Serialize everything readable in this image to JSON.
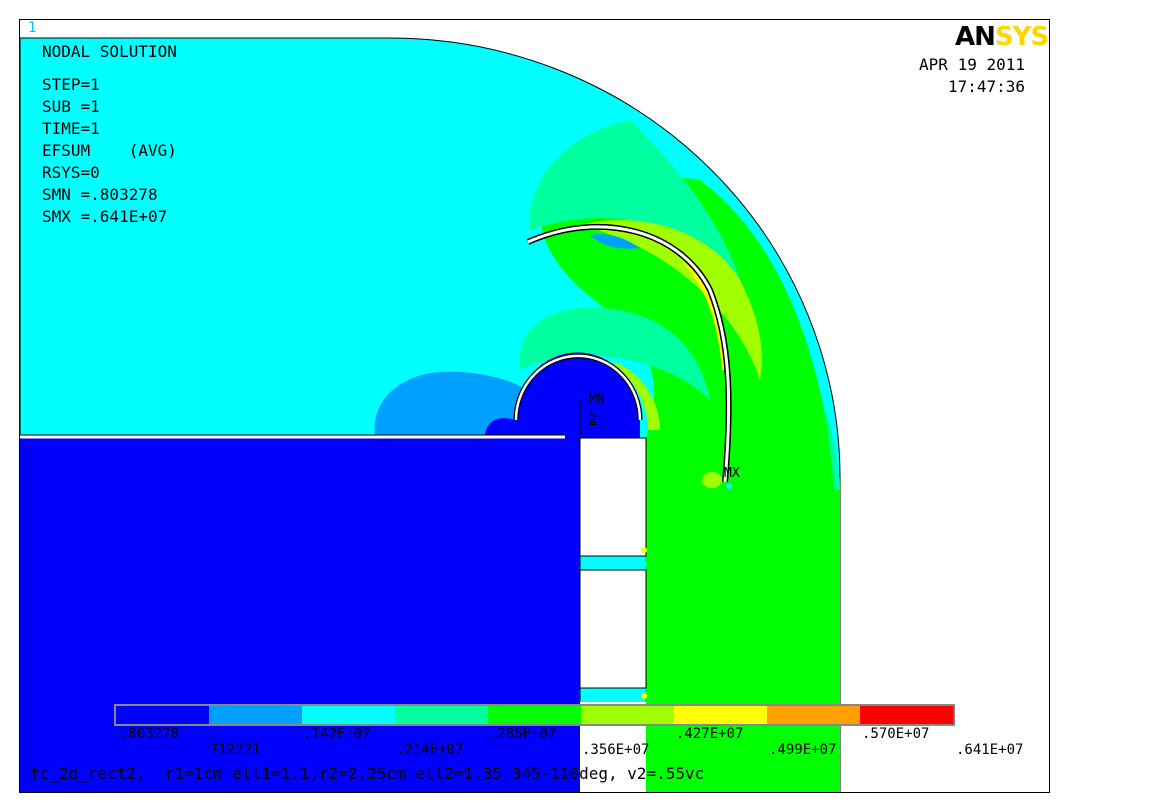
{
  "window_number": "1",
  "logo": {
    "part1": "AN",
    "part2": "SYS"
  },
  "date": "APR 19 2011",
  "time": "17:47:36",
  "info": {
    "title": "NODAL SOLUTION",
    "lines": [
      "STEP=1",
      "SUB =1",
      "TIME=1",
      "EFSUM    (AVG)",
      "RSYS=0",
      "SMN =.803278",
      "SMX =.641E+07"
    ]
  },
  "markers": {
    "min": "MN",
    "min_node": "2",
    "max": "MX"
  },
  "legend": {
    "colors": [
      "#0000ff",
      "#00a0ff",
      "#00ffff",
      "#00ff9f",
      "#00ff00",
      "#a0ff00",
      "#ffff00",
      "#ffa000",
      "#ff0000"
    ],
    "labels_top": [
      ".803278",
      ".142E+07",
      ".285E+07",
      ".427E+07",
      ".570E+07"
    ],
    "labels_bottom": [
      "712221",
      ".214E+07",
      ".356E+07",
      ".499E+07",
      ".641E+07"
    ]
  },
  "footer": "fc_2d_rect2,  r1=1cm ell1=1.1,r2=2.25cm ell2=1.35 345-110deg, v2=.55vc"
}
